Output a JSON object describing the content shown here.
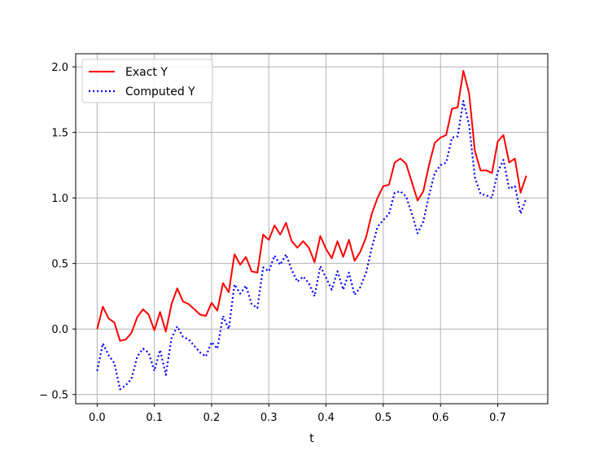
{
  "chart_data": {
    "type": "line",
    "xlabel": "t",
    "ylabel": "",
    "xlim": [
      -0.0375,
      0.7875
    ],
    "ylim": [
      -0.57,
      2.1
    ],
    "xticks": [
      0.0,
      0.1,
      0.2,
      0.3,
      0.4,
      0.5,
      0.6,
      0.7
    ],
    "xtick_labels": [
      "0.0",
      "0.1",
      "0.2",
      "0.3",
      "0.4",
      "0.5",
      "0.6",
      "0.7"
    ],
    "yticks": [
      -0.5,
      0.0,
      0.5,
      1.0,
      1.5,
      2.0
    ],
    "ytick_labels": [
      "− 0.5",
      "0.0",
      "0.5",
      "1.0",
      "1.5",
      "2.0"
    ],
    "grid": true,
    "legend_position": "top-left",
    "x": [
      0.0,
      0.01,
      0.02,
      0.03,
      0.04,
      0.05,
      0.06,
      0.07,
      0.08,
      0.09,
      0.1,
      0.11,
      0.12,
      0.13,
      0.14,
      0.15,
      0.16,
      0.17,
      0.18,
      0.19,
      0.2,
      0.21,
      0.22,
      0.23,
      0.24,
      0.25,
      0.26,
      0.27,
      0.28,
      0.29,
      0.3,
      0.31,
      0.32,
      0.33,
      0.34,
      0.35,
      0.36,
      0.37,
      0.38,
      0.39,
      0.4,
      0.41,
      0.42,
      0.43,
      0.44,
      0.45,
      0.46,
      0.47,
      0.48,
      0.49,
      0.5,
      0.51,
      0.52,
      0.53,
      0.54,
      0.55,
      0.56,
      0.57,
      0.58,
      0.59,
      0.6,
      0.61,
      0.62,
      0.63,
      0.64,
      0.65,
      0.66,
      0.67,
      0.68,
      0.69,
      0.7,
      0.71,
      0.72,
      0.73,
      0.74,
      0.75
    ],
    "series": [
      {
        "name": "Exact Y",
        "color": "#ff0000",
        "style": "solid",
        "values": [
          0.0,
          0.17,
          0.08,
          0.05,
          -0.09,
          -0.08,
          -0.03,
          0.09,
          0.15,
          0.11,
          -0.01,
          0.13,
          -0.02,
          0.19,
          0.31,
          0.21,
          0.19,
          0.15,
          0.11,
          0.1,
          0.2,
          0.14,
          0.35,
          0.28,
          0.57,
          0.49,
          0.55,
          0.44,
          0.43,
          0.72,
          0.68,
          0.79,
          0.72,
          0.81,
          0.67,
          0.62,
          0.67,
          0.62,
          0.51,
          0.71,
          0.61,
          0.54,
          0.67,
          0.55,
          0.68,
          0.52,
          0.59,
          0.7,
          0.88,
          1.0,
          1.09,
          1.1,
          1.27,
          1.3,
          1.26,
          1.12,
          0.98,
          1.05,
          1.25,
          1.42,
          1.46,
          1.48,
          1.68,
          1.69,
          1.97,
          1.8,
          1.36,
          1.21,
          1.21,
          1.19,
          1.43,
          1.48,
          1.27,
          1.3,
          1.04,
          1.17
        ]
      },
      {
        "name": "Computed Y",
        "color": "#0000ff",
        "style": "dotted",
        "values": [
          -0.32,
          -0.11,
          -0.2,
          -0.26,
          -0.46,
          -0.43,
          -0.38,
          -0.21,
          -0.15,
          -0.18,
          -0.32,
          -0.16,
          -0.35,
          -0.07,
          0.02,
          -0.06,
          -0.08,
          -0.13,
          -0.18,
          -0.21,
          -0.1,
          -0.15,
          0.1,
          0.0,
          0.34,
          0.27,
          0.33,
          0.19,
          0.16,
          0.47,
          0.44,
          0.56,
          0.49,
          0.57,
          0.45,
          0.36,
          0.4,
          0.35,
          0.25,
          0.48,
          0.39,
          0.3,
          0.44,
          0.3,
          0.43,
          0.26,
          0.32,
          0.43,
          0.62,
          0.78,
          0.83,
          0.88,
          1.04,
          1.05,
          1.01,
          0.88,
          0.73,
          0.82,
          1.02,
          1.19,
          1.25,
          1.27,
          1.46,
          1.47,
          1.74,
          1.56,
          1.16,
          1.03,
          1.02,
          1.0,
          1.2,
          1.29,
          1.07,
          1.09,
          0.88,
          1.0
        ]
      }
    ]
  }
}
